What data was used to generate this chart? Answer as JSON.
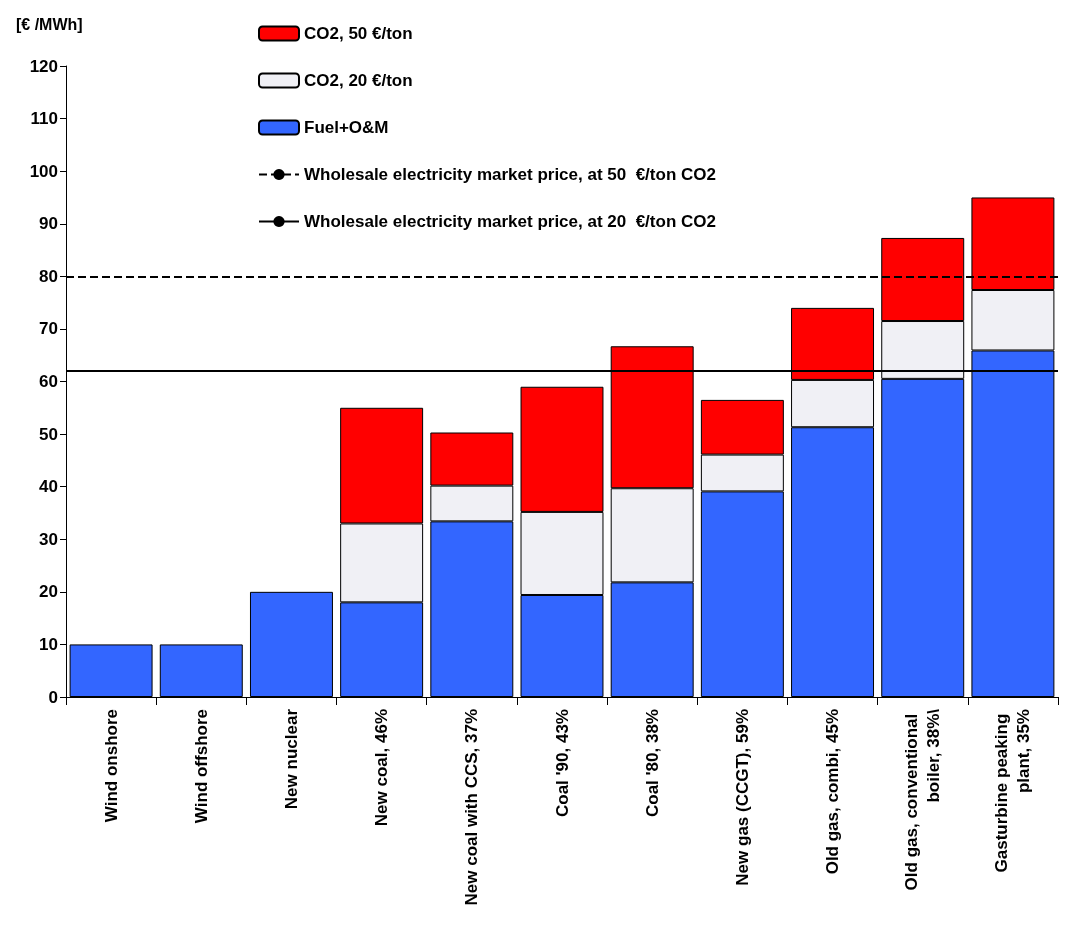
{
  "chart_data": {
    "type": "bar",
    "stacked": true,
    "ylabel": "[€ /MWh]",
    "categories": [
      "Wind onshore",
      "Wind offshore",
      "New nuclear",
      "New coal, 46%",
      "New coal with CCS, 37%",
      "Coal '90, 43%",
      "Coal '80, 38%",
      "New gas (CCGT), 59%",
      "Old gas, combi, 45%",
      "Old gas, conventional boiler, 38%\\",
      "Gasturbine peaking plant, 35%"
    ],
    "series": [
      {
        "name": "Fuel+O&M",
        "color": "#3366ff",
        "values": [
          10,
          10,
          20,
          18,
          33.4,
          19.4,
          21.8,
          39.1,
          51.3,
          60.5,
          65.9
        ]
      },
      {
        "name": "CO2, 20 €/ton",
        "color": "#f0f0f5",
        "values": [
          null,
          null,
          null,
          15,
          6.8,
          15.8,
          17.9,
          7,
          9,
          11,
          11.5
        ]
      },
      {
        "name": "CO2, 50 €/ton",
        "color": "#ff0000",
        "values": [
          null,
          null,
          null,
          22,
          10.1,
          23.8,
          27,
          10.4,
          13.7,
          15.8,
          17.6
        ]
      }
    ],
    "ref_lines": [
      {
        "axis": "y",
        "value": 80,
        "label": "Wholesale electricity market price, at 50  €/ton CO2",
        "color": "#000000",
        "line_style": "dashed"
      },
      {
        "axis": "y",
        "value": 62,
        "label": "Wholesale electricity market price, at 20  €/ton CO2",
        "color": "#000000",
        "line_style": "solid"
      }
    ],
    "ylim": [
      0,
      120
    ],
    "yticks": [
      0,
      10,
      20,
      30,
      40,
      50,
      60,
      70,
      80,
      90,
      100,
      110,
      120
    ],
    "grid": false,
    "legend": "top left"
  }
}
